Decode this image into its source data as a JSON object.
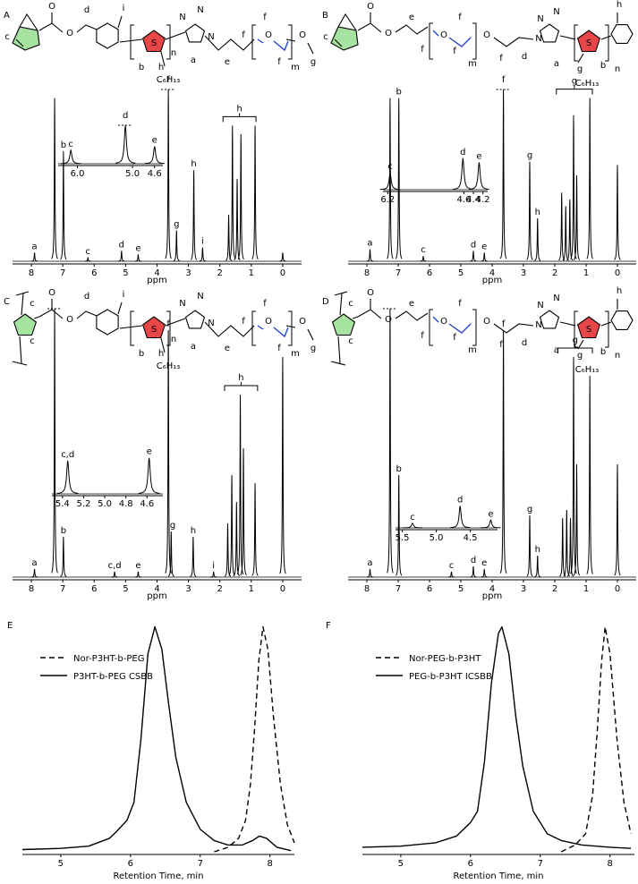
{
  "chart_data": [
    {
      "type": "spectrum",
      "panel": "A",
      "color": "#000000",
      "structure": [
        "c",
        "O",
        "O",
        "d",
        "i",
        "S",
        "b",
        "n",
        "h",
        "C₆H₁₃",
        "N",
        "N",
        "N",
        "a",
        "e",
        "f",
        "O",
        "f",
        "f",
        "m",
        "O",
        "g"
      ],
      "xlabel": "ppm",
      "xlim": [
        8.6,
        -0.6
      ],
      "xticks": [
        8,
        7,
        6,
        5,
        4,
        3,
        2,
        1,
        0
      ],
      "ylim": [
        0,
        100
      ],
      "peaks": {
        "x": [
          7.9,
          7.26,
          6.98,
          6.2,
          5.13,
          4.6,
          3.64,
          3.38,
          2.83,
          2.55,
          1.72,
          1.6,
          1.45,
          1.33,
          0.88,
          0
        ],
        "values": [
          5,
          95,
          64,
          2,
          6,
          4,
          100,
          18,
          53,
          8,
          27,
          79,
          48,
          74,
          79,
          5
        ]
      },
      "peak_labels": [
        {
          "text": "a",
          "x": 7.9
        },
        {
          "text": "b",
          "x": 6.98
        },
        {
          "text": "c",
          "x": 6.2
        },
        {
          "text": "d",
          "x": 5.13
        },
        {
          "text": "e",
          "x": 4.6
        },
        {
          "text": "f",
          "x": 3.64
        },
        {
          "text": "g",
          "x": 3.38
        },
        {
          "text": "h",
          "x": 2.83
        },
        {
          "text": "i",
          "x": 2.55
        }
      ],
      "bracket": {
        "text": "h",
        "from": 1.9,
        "to": 0.85
      },
      "inset": {
        "xlim": [
          6.35,
          4.45
        ],
        "xticks": [
          {
            "value": 6,
            "label": "6.0"
          },
          {
            "value": 5,
            "label": "5.0"
          },
          4.6
        ],
        "ylim": [
          0,
          100
        ],
        "peaks": {
          "x": [
            6.12,
            5.13,
            4.6
          ],
          "values": [
            35,
            100,
            45
          ]
        },
        "peak_labels": [
          {
            "text": "c",
            "x": 6.12
          },
          {
            "text": "d",
            "x": 5.13
          },
          {
            "text": "e",
            "x": 4.6
          }
        ]
      }
    },
    {
      "type": "spectrum",
      "panel": "B",
      "color": "#000000",
      "structure": [
        "c",
        "O",
        "O",
        "e",
        "f",
        "O",
        "f",
        "f",
        "m",
        "O",
        "f",
        "d",
        "N",
        "N",
        "N",
        "a",
        "S",
        "g",
        "C₆H₁₃",
        "b",
        "n",
        "h"
      ],
      "xlabel": "ppm",
      "xlim": [
        8.6,
        -0.6
      ],
      "xticks": [
        8,
        7,
        6,
        5,
        4,
        3,
        2,
        1,
        0
      ],
      "ylim": [
        0,
        100
      ],
      "peaks": {
        "x": [
          7.9,
          7.26,
          6.98,
          6.2,
          4.6,
          4.25,
          3.64,
          2.8,
          2.55,
          1.78,
          1.65,
          1.52,
          1.4,
          1.3,
          0.88,
          0
        ],
        "values": [
          7,
          95,
          95,
          3,
          6,
          5,
          100,
          58,
          25,
          40,
          32,
          36,
          85,
          50,
          95,
          56
        ]
      },
      "peak_labels": [
        {
          "text": "a",
          "x": 7.9
        },
        {
          "text": "b",
          "x": 6.98
        },
        {
          "text": "c",
          "x": 6.2
        },
        {
          "text": "d",
          "x": 4.6
        },
        {
          "text": "e",
          "x": 4.25
        },
        {
          "text": "f",
          "x": 3.64
        },
        {
          "text": "g",
          "x": 2.8
        },
        {
          "text": "h",
          "x": 2.55
        }
      ],
      "bracket": {
        "text": "g",
        "from": 1.95,
        "to": 0.8
      },
      "inset": {
        "xlim": [
          6.3,
          4.1
        ],
        "xticks": [
          6.2,
          4.6,
          4.4,
          4.2
        ],
        "ylim": [
          0,
          100
        ],
        "peaks": {
          "x": [
            6.15,
            4.62,
            4.28
          ],
          "values": [
            40,
            75,
            65
          ]
        },
        "peak_labels": [
          {
            "text": "c",
            "x": 6.15
          },
          {
            "text": "d",
            "x": 4.62
          },
          {
            "text": "e",
            "x": 4.28
          }
        ]
      }
    },
    {
      "type": "spectrum",
      "panel": "C",
      "color": "#000000",
      "structure": [
        "c",
        "c",
        "O",
        "O",
        "d",
        "i",
        "S",
        "b",
        "n",
        "h",
        "C₆H₁₃",
        "N",
        "N",
        "N",
        "a",
        "e",
        "f",
        "O",
        "f",
        "f",
        "m",
        "O",
        "g"
      ],
      "xlabel": "ppm",
      "xlim": [
        8.6,
        -0.6
      ],
      "xticks": [
        8,
        7,
        6,
        5,
        4,
        3,
        2,
        1,
        0
      ],
      "ylim": [
        0,
        100
      ],
      "peaks": {
        "x": [
          7.9,
          7.26,
          6.98,
          5.35,
          4.6,
          3.64,
          3.55,
          2.85,
          2.2,
          1.75,
          1.62,
          1.47,
          1.35,
          1.25,
          0.88,
          0
        ],
        "values": [
          3,
          100,
          15,
          2,
          2,
          92,
          17,
          15,
          2,
          20,
          38,
          28,
          68,
          48,
          35,
          82
        ]
      },
      "peak_labels": [
        {
          "text": "a",
          "x": 7.9
        },
        {
          "text": "b",
          "x": 6.98
        },
        {
          "text": "c,d",
          "x": 5.35
        },
        {
          "text": "e",
          "x": 4.6
        },
        {
          "text": "f",
          "x": 3.64
        },
        {
          "text": "g",
          "x": 3.5
        },
        {
          "text": "h",
          "x": 2.85
        },
        {
          "text": "i",
          "x": 2.2
        }
      ],
      "bracket": {
        "text": "h",
        "from": 1.85,
        "to": 0.8
      },
      "inset": {
        "xlim": [
          5.5,
          4.45
        ],
        "xticks": [
          5.4,
          5.2,
          {
            "value": 5,
            "label": "5.0"
          },
          4.8,
          4.6
        ],
        "ylim": [
          0,
          100
        ],
        "peaks": {
          "x": [
            5.35,
            4.58
          ],
          "values": [
            60,
            65
          ]
        },
        "peak_labels": [
          {
            "text": "c,d",
            "x": 5.35
          },
          {
            "text": "e",
            "x": 4.58
          }
        ]
      }
    },
    {
      "type": "spectrum",
      "panel": "D",
      "color": "#000000",
      "structure": [
        "c",
        "c",
        "O",
        "O",
        "e",
        "f",
        "O",
        "f",
        "f",
        "m",
        "O",
        "f",
        "d",
        "N",
        "N",
        "N",
        "a",
        "S",
        "g",
        "C₆H₁₃",
        "b",
        "n",
        "h"
      ],
      "xlabel": "ppm",
      "xlim": [
        8.6,
        -0.6
      ],
      "xticks": [
        8,
        7,
        6,
        5,
        4,
        3,
        2,
        1,
        0
      ],
      "ylim": [
        0,
        100
      ],
      "peaks": {
        "x": [
          7.9,
          7.26,
          6.98,
          5.3,
          4.6,
          4.25,
          3.64,
          2.8,
          2.55,
          1.75,
          1.62,
          1.5,
          1.4,
          1.3,
          0.88,
          0
        ],
        "values": [
          3,
          100,
          38,
          2,
          4,
          3,
          92,
          23,
          8,
          22,
          25,
          22,
          82,
          42,
          75,
          42
        ]
      },
      "peak_labels": [
        {
          "text": "a",
          "x": 7.9
        },
        {
          "text": "b",
          "x": 6.98
        },
        {
          "text": "c",
          "x": 5.3
        },
        {
          "text": "d",
          "x": 4.6
        },
        {
          "text": "e",
          "x": 4.25
        },
        {
          "text": "f",
          "x": 3.64
        },
        {
          "text": "g",
          "x": 2.8
        },
        {
          "text": "h",
          "x": 2.55
        }
      ],
      "bracket": {
        "text": "g",
        "from": 1.9,
        "to": 0.8
      },
      "inset": {
        "xlim": [
          5.6,
          4.1
        ],
        "xticks": [
          5.5,
          {
            "value": 5,
            "label": "5.0"
          },
          4.5
        ],
        "ylim": [
          0,
          100
        ],
        "peaks": {
          "x": [
            5.35,
            4.65,
            4.2
          ],
          "values": [
            15,
            70,
            25
          ]
        },
        "peak_labels": [
          {
            "text": "c",
            "x": 5.35
          },
          {
            "text": "d",
            "x": 4.65
          },
          {
            "text": "e",
            "x": 4.2
          }
        ]
      }
    },
    {
      "type": "line",
      "panel": "E",
      "xlabel": "Retention Time, min",
      "xlim": [
        4.45,
        8.35
      ],
      "xticks": [
        5,
        6,
        7,
        8
      ],
      "ylim": [
        0,
        105
      ],
      "series": [
        {
          "name": "Nor-P3HT-b-PEG",
          "color": "#000000",
          "dash": "dashed",
          "x": [
            7.2,
            7.4,
            7.55,
            7.65,
            7.72,
            7.78,
            7.84,
            7.9,
            7.97,
            8.05,
            8.15,
            8.25,
            8.35
          ],
          "values": [
            0,
            2,
            6,
            14,
            30,
            55,
            85,
            100,
            90,
            60,
            30,
            12,
            4
          ]
        },
        {
          "name": "P3HT-b-PEG CSBB",
          "color": "#000000",
          "dash": "solid",
          "x": [
            4.45,
            5.0,
            5.4,
            5.7,
            5.8,
            5.95,
            6.05,
            6.15,
            6.25,
            6.35,
            6.45,
            6.55,
            6.65,
            6.8,
            7.0,
            7.2,
            7.4,
            7.6,
            7.75,
            7.85,
            7.95,
            8.1,
            8.3
          ],
          "values": [
            1,
            1.5,
            2.5,
            6,
            9,
            14,
            22,
            50,
            88,
            100,
            90,
            65,
            42,
            22,
            10,
            5,
            3,
            3,
            5,
            7,
            6,
            2,
            0.5
          ]
        }
      ]
    },
    {
      "type": "line",
      "panel": "F",
      "xlabel": "Retention Time, min",
      "xlim": [
        4.45,
        8.35
      ],
      "xticks": [
        5,
        6,
        7,
        8
      ],
      "ylim": [
        0,
        105
      ],
      "series": [
        {
          "name": "Nor-PEG-b-P3HT",
          "color": "#000000",
          "dash": "dashed",
          "x": [
            7.3,
            7.5,
            7.65,
            7.75,
            7.82,
            7.88,
            7.93,
            8.0,
            8.1,
            8.2,
            8.3
          ],
          "values": [
            0,
            3,
            8,
            25,
            55,
            85,
            100,
            88,
            50,
            22,
            8
          ]
        },
        {
          "name": "PEG-b-P3HT ICSBB",
          "color": "#000000",
          "dash": "solid",
          "x": [
            4.45,
            5.0,
            5.5,
            5.8,
            6.0,
            6.1,
            6.2,
            6.3,
            6.4,
            6.45,
            6.55,
            6.65,
            6.75,
            6.9,
            7.1,
            7.3,
            7.6,
            8.0,
            8.3
          ],
          "values": [
            2,
            2.5,
            4,
            7,
            13,
            18,
            40,
            75,
            97,
            100,
            88,
            60,
            38,
            18,
            8,
            5,
            3,
            2,
            1.5
          ]
        }
      ]
    }
  ]
}
